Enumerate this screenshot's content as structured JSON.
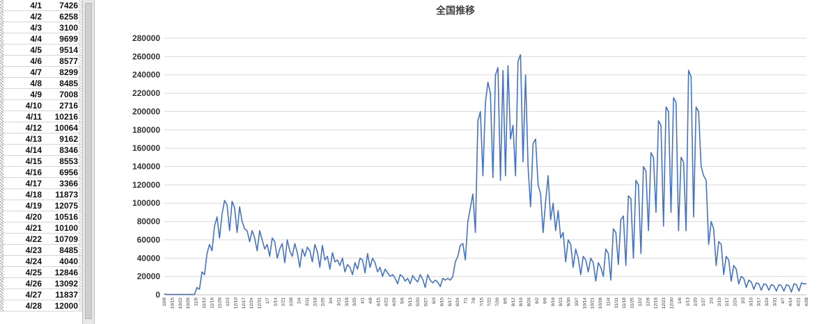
{
  "sheet": {
    "rows": [
      {
        "date": "4/1",
        "value": "7426"
      },
      {
        "date": "4/2",
        "value": "6258"
      },
      {
        "date": "4/3",
        "value": "3100"
      },
      {
        "date": "4/4",
        "value": "9699"
      },
      {
        "date": "4/5",
        "value": "9514"
      },
      {
        "date": "4/6",
        "value": "8577"
      },
      {
        "date": "4/7",
        "value": "8299"
      },
      {
        "date": "4/8",
        "value": "8485"
      },
      {
        "date": "4/9",
        "value": "7008"
      },
      {
        "date": "4/10",
        "value": "2716"
      },
      {
        "date": "4/11",
        "value": "10216"
      },
      {
        "date": "4/12",
        "value": "10064"
      },
      {
        "date": "4/13",
        "value": "9162"
      },
      {
        "date": "4/14",
        "value": "8346"
      },
      {
        "date": "4/15",
        "value": "8553"
      },
      {
        "date": "4/16",
        "value": "6956"
      },
      {
        "date": "4/17",
        "value": "3366"
      },
      {
        "date": "4/18",
        "value": "11873"
      },
      {
        "date": "4/19",
        "value": "12075"
      },
      {
        "date": "4/20",
        "value": "10516"
      },
      {
        "date": "4/21",
        "value": "10100"
      },
      {
        "date": "4/22",
        "value": "10709"
      },
      {
        "date": "4/23",
        "value": "8485"
      },
      {
        "date": "4/24",
        "value": "4040"
      },
      {
        "date": "4/25",
        "value": "12846"
      },
      {
        "date": "4/26",
        "value": "13092"
      },
      {
        "date": "4/27",
        "value": "11837"
      },
      {
        "date": "4/28",
        "value": "12000"
      }
    ]
  },
  "chart_data": {
    "type": "line",
    "title": "全国推移",
    "xlabel": "",
    "ylabel": "",
    "ylim": [
      0,
      280000
    ],
    "ytick_step": 20000,
    "grid": true,
    "legend": "none",
    "line_color": "#4472c4",
    "grid_color": "#d9d9d9",
    "x_tick_labels": [
      "10/8",
      "10/15",
      "10/22",
      "10/29",
      "11/5",
      "11/12",
      "11/19",
      "11/26",
      "12/3",
      "12/10",
      "12/17",
      "12/24",
      "12/31",
      "1/7",
      "1/14",
      "1/21",
      "1/28",
      "2/4",
      "2/11",
      "2/18",
      "2/25",
      "3/4",
      "3/11",
      "3/18",
      "3/25",
      "4/1",
      "4/8",
      "4/15",
      "4/22",
      "4/29",
      "5/6",
      "5/13",
      "5/20",
      "5/27",
      "6/3",
      "6/10",
      "6/17",
      "6/24",
      "7/1",
      "7/8",
      "7/15",
      "7/22",
      "7/29",
      "8/5",
      "8/12",
      "8/19",
      "8/26",
      "9/2",
      "9/9",
      "9/16",
      "9/23",
      "9/30",
      "10/7",
      "10/14",
      "10/21",
      "10/28",
      "11/4",
      "11/11",
      "11/18",
      "11/25",
      "12/2",
      "12/9",
      "12/16",
      "12/23",
      "12/30",
      "1/6",
      "1/13",
      "1/20",
      "1/27",
      "2/3",
      "2/10",
      "2/17",
      "2/24",
      "3/3",
      "3/10",
      "3/17",
      "3/24",
      "3/31",
      "4/7",
      "4/14",
      "4/21",
      "4/28"
    ],
    "series": [
      {
        "values": [
          1000,
          300,
          300,
          300,
          300,
          400,
          300,
          300,
          300,
          300,
          400,
          300,
          300,
          8000,
          6000,
          25000,
          22000,
          45000,
          55000,
          48000,
          75000,
          85000,
          62000,
          88000,
          103000,
          98000,
          70000,
          102000,
          95000,
          68000,
          96000,
          80000,
          72000,
          70000,
          58000,
          70000,
          62000,
          48000,
          70000,
          60000,
          50000,
          55000,
          42000,
          62000,
          58000,
          40000,
          50000,
          56000,
          35000,
          60000,
          48000,
          42000,
          56000,
          46000,
          30000,
          50000,
          42000,
          52000,
          48000,
          36000,
          55000,
          47000,
          30000,
          54000,
          38000,
          42000,
          28000,
          46000,
          36000,
          38000,
          32000,
          40000,
          25000,
          33000,
          30000,
          22000,
          35000,
          28000,
          40000,
          38000,
          24000,
          45000,
          30000,
          40000,
          35000,
          25000,
          30000,
          20000,
          28000,
          24000,
          20000,
          22000,
          18000,
          12000,
          22000,
          20000,
          15000,
          18000,
          12000,
          21000,
          17000,
          14000,
          22000,
          17000,
          8000,
          22000,
          16000,
          13000,
          16000,
          14000,
          9000,
          18000,
          16000,
          18000,
          16000,
          20000,
          36000,
          42000,
          54000,
          56000,
          38000,
          80000,
          95000,
          110000,
          68000,
          190000,
          200000,
          130000,
          210000,
          232000,
          220000,
          128000,
          240000,
          248000,
          125000,
          245000,
          130000,
          250000,
          170000,
          185000,
          130000,
          255000,
          262000,
          145000,
          240000,
          140000,
          96000,
          165000,
          170000,
          120000,
          110000,
          68000,
          102000,
          130000,
          82000,
          100000,
          70000,
          92000,
          62000,
          68000,
          36000,
          60000,
          55000,
          30000,
          50000,
          40000,
          22000,
          42000,
          38000,
          25000,
          40000,
          35000,
          15000,
          35000,
          30000,
          20000,
          50000,
          45000,
          16000,
          72000,
          68000,
          33000,
          82000,
          86000,
          32000,
          108000,
          105000,
          40000,
          125000,
          120000,
          45000,
          140000,
          135000,
          70000,
          155000,
          150000,
          90000,
          190000,
          185000,
          75000,
          205000,
          200000,
          90000,
          215000,
          210000,
          70000,
          150000,
          145000,
          70000,
          245000,
          238000,
          85000,
          205000,
          200000,
          140000,
          130000,
          125000,
          55000,
          80000,
          72000,
          32000,
          58000,
          55000,
          22000,
          42000,
          38000,
          15000,
          32000,
          28000,
          12000,
          20000,
          18000,
          8000,
          16000,
          14000,
          6000,
          13000,
          12000,
          5000,
          12000,
          11000,
          5000,
          11000,
          10000,
          4000,
          11000,
          10000,
          4000,
          11000,
          10000,
          3000,
          12000,
          11000,
          4000,
          13000,
          12000,
          12000
        ]
      }
    ]
  }
}
